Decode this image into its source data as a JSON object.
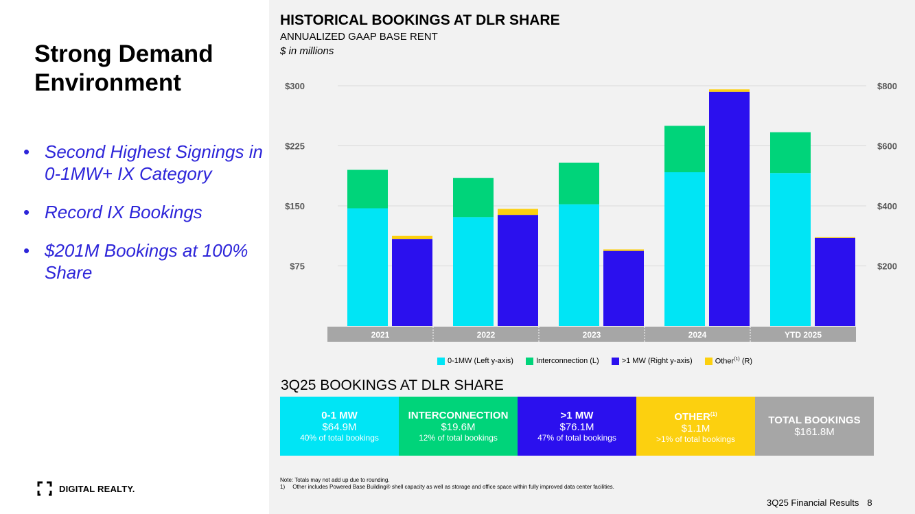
{
  "left": {
    "heading": [
      "Strong Demand",
      "Environment"
    ],
    "bullets": [
      "Second Highest Signings in 0-1MW+ IX Category",
      "Record IX Bookings",
      "$201M Bookings at 100% Share"
    ],
    "bullet_glyph": "•",
    "logo_text": "DIGITAL REALTY."
  },
  "chart_header": {
    "title": "HISTORICAL BOOKINGS AT DLR SHARE",
    "subtitle": "ANNUALIZED GAAP BASE RENT",
    "unit": "$ in millions"
  },
  "chart_data": {
    "type": "bar",
    "stacked": true,
    "dual_axis": true,
    "categories": [
      "2021",
      "2022",
      "2023",
      "2024",
      "YTD 2025"
    ],
    "left_axis": {
      "ticks": [
        "$75",
        "$150",
        "$225",
        "$300"
      ],
      "tick_values": [
        75,
        150,
        225,
        300
      ],
      "ylim": [
        0,
        300
      ]
    },
    "right_axis": {
      "ticks": [
        "$200",
        "$400",
        "$600",
        "$800"
      ],
      "tick_values": [
        200,
        400,
        600,
        800
      ],
      "ylim": [
        0,
        800
      ]
    },
    "left_series": [
      {
        "name": "0-1MW (Left y-axis)",
        "color": "#00e5f5",
        "values": [
          147,
          136,
          152,
          192,
          191
        ]
      },
      {
        "name": "Interconnection (L)",
        "color": "#00d47a",
        "values": [
          48,
          49,
          52,
          58,
          51
        ]
      }
    ],
    "right_series": [
      {
        "name": ">1 MW (Right y-axis)",
        "color": "#2b10ee",
        "values": [
          290,
          370,
          250,
          780,
          293
        ]
      },
      {
        "name": "Other(1) (R)",
        "color": "#fcd00f",
        "values": [
          10,
          20,
          5,
          8,
          3
        ]
      }
    ],
    "grid": true,
    "legend_position": "bottom"
  },
  "legend": [
    {
      "label": "0-1MW (Left y-axis)",
      "color": "#00e5f5"
    },
    {
      "label": "Interconnection (L)",
      "color": "#00d47a"
    },
    {
      "label": ">1 MW (Right y-axis)",
      "color": "#2b10ee"
    },
    {
      "label_main": "Other",
      "label_sup": "(1)",
      "label_tail": " (R)",
      "color": "#fcd00f"
    }
  ],
  "bookings": {
    "title": "3Q25 BOOKINGS AT DLR SHARE",
    "cards": [
      {
        "label": "0-1 MW",
        "value": "$64.9M",
        "pct": "40% of total bookings",
        "color": "#00e5f5"
      },
      {
        "label": "INTERCONNECTION",
        "value": "$19.6M",
        "pct": "12% of total bookings",
        "color": "#00d47a"
      },
      {
        "label": ">1 MW",
        "value": "$76.1M",
        "pct": "47% of total bookings",
        "color": "#2b10ee"
      },
      {
        "label": "OTHER",
        "label_sup": "(1)",
        "value": "$1.1M",
        "pct": ">1% of total bookings",
        "color": "#fcd00f"
      },
      {
        "label": "TOTAL BOOKINGS",
        "value": "$161.8M",
        "pct": "",
        "color": "#a6a6a6"
      }
    ]
  },
  "notes": [
    "Note: Totals may not add up due to rounding.",
    "1)     Other includes Powered Base Building® shell capacity as well as storage and office space within fully improved data center facilities."
  ],
  "footer": {
    "label": "3Q25 Financial Results",
    "page": "8"
  }
}
